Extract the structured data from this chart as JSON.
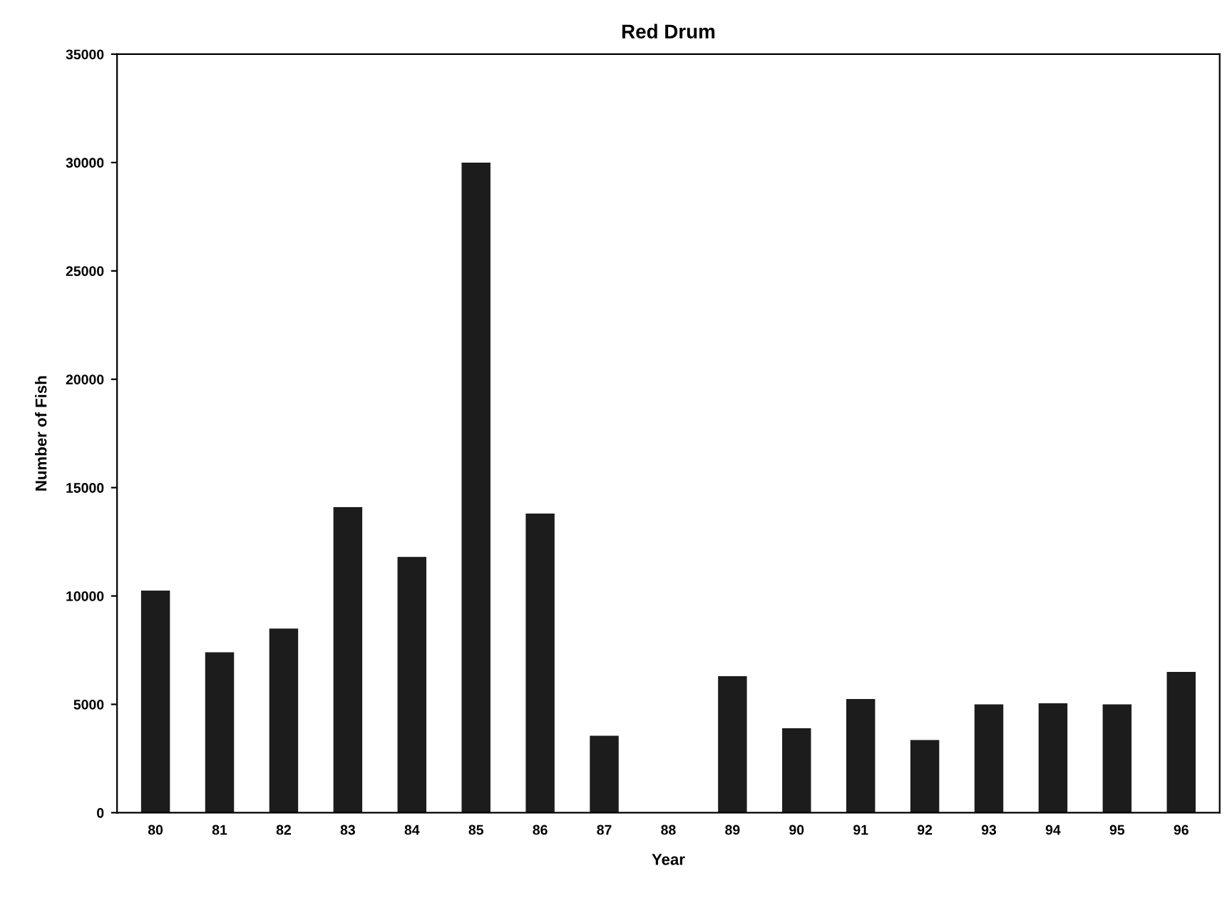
{
  "chart_data": {
    "type": "bar",
    "title": "Red Drum",
    "xlabel": "Year",
    "ylabel": "Number of Fish",
    "categories": [
      "80",
      "81",
      "82",
      "83",
      "84",
      "85",
      "86",
      "87",
      "88",
      "89",
      "90",
      "91",
      "92",
      "93",
      "94",
      "95",
      "96"
    ],
    "values": [
      10250,
      7400,
      8500,
      14100,
      11800,
      30000,
      13800,
      3550,
      0,
      6300,
      3900,
      5250,
      3350,
      5000,
      5050,
      5000,
      6500
    ],
    "color": "#1c1c1c",
    "ylim": [
      0,
      35000
    ],
    "yticks": [
      0,
      5000,
      10000,
      15000,
      20000,
      25000,
      30000,
      35000
    ],
    "grid": false,
    "legend": false
  }
}
